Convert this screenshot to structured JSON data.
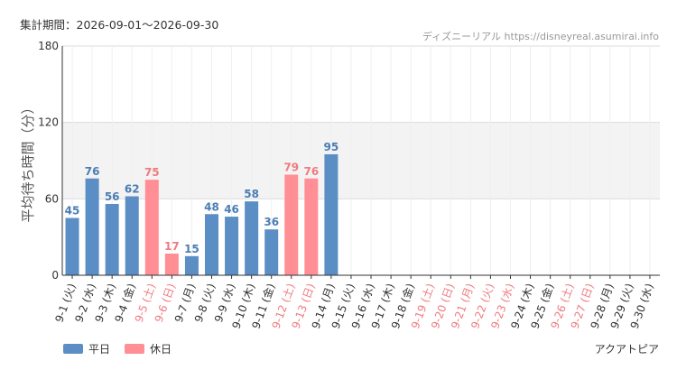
{
  "header": {
    "period_label": "集計期間：2026-09-01～2026-09-30",
    "source_label": "ディズニーリアル https://disneyreal.asumirai.info"
  },
  "footer": {
    "attraction_name": "アクアトピア"
  },
  "colors": {
    "weekday": "#5b8ec4",
    "holiday": "#ff8f94",
    "weekday_label": "#4a7db5",
    "holiday_label": "#f07a80",
    "band": "#f3f3f3"
  },
  "chart_data": {
    "type": "bar",
    "ylabel": "平均待ち時間（分）",
    "ylim": [
      0,
      180
    ],
    "yticks": [
      0,
      60,
      120,
      180
    ],
    "shaded_band": [
      60,
      120
    ],
    "categories": [
      "9-1 (火)",
      "9-2 (水)",
      "9-3 (木)",
      "9-4 (金)",
      "9-5 (土)",
      "9-6 (日)",
      "9-7 (月)",
      "9-8 (火)",
      "9-9 (水)",
      "9-10 (木)",
      "9-11 (金)",
      "9-12 (土)",
      "9-13 (日)",
      "9-14 (月)",
      "9-15 (火)",
      "9-16 (水)",
      "9-17 (木)",
      "9-18 (金)",
      "9-19 (土)",
      "9-20 (日)",
      "9-21 (月)",
      "9-22 (火)",
      "9-23 (水)",
      "9-24 (木)",
      "9-25 (金)",
      "9-26 (土)",
      "9-27 (日)",
      "9-28 (月)",
      "9-29 (火)",
      "9-30 (水)"
    ],
    "values": [
      45,
      76,
      56,
      62,
      75,
      17,
      15,
      48,
      46,
      58,
      36,
      79,
      76,
      95,
      null,
      null,
      null,
      null,
      null,
      null,
      null,
      null,
      null,
      null,
      null,
      null,
      null,
      null,
      null,
      null
    ],
    "holiday": [
      false,
      false,
      false,
      false,
      true,
      true,
      false,
      false,
      false,
      false,
      false,
      true,
      true,
      false,
      false,
      false,
      false,
      false,
      true,
      true,
      true,
      true,
      true,
      false,
      false,
      true,
      true,
      false,
      false,
      false
    ],
    "series": [
      {
        "name": "平日"
      },
      {
        "name": "休日"
      }
    ],
    "legend_position": "bottom-left"
  }
}
